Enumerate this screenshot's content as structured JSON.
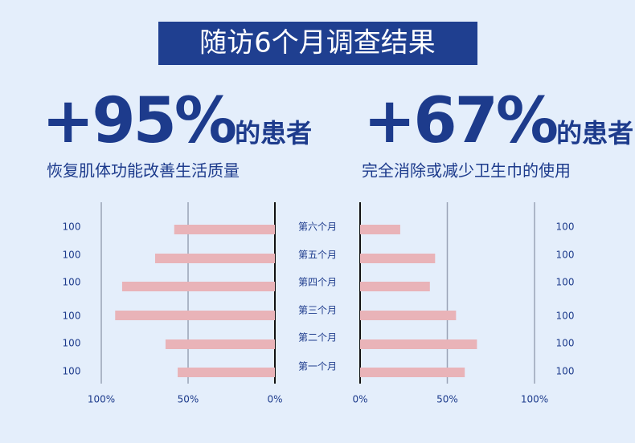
{
  "title": "随访6个月调查结果",
  "chart_data": [
    {
      "type": "bar",
      "orientation": "horizontal",
      "headline": "+95%",
      "headline_suffix": "的患者",
      "subtitle": "恢复肌体功能改善生活质量",
      "categories": [
        "第六个月",
        "第五个月",
        "第四个月",
        "第三个月",
        "第二个月",
        "第一个月"
      ],
      "values": [
        58,
        69,
        88,
        92,
        63,
        56
      ],
      "side_labels": [
        "100",
        "100",
        "100",
        "100",
        "100",
        "100"
      ],
      "color": "#e9b3b8",
      "xlim": [
        100,
        0
      ],
      "xticks": [
        {
          "value": 100,
          "label": "100%"
        },
        {
          "value": 50,
          "label": "50%"
        },
        {
          "value": 0,
          "label": "0%"
        }
      ],
      "grid": true
    },
    {
      "type": "bar",
      "orientation": "horizontal",
      "headline": "+67%",
      "headline_suffix": "的患者",
      "subtitle": "完全消除或减少卫生巾的使用",
      "values": [
        23,
        43,
        40,
        55,
        67,
        60
      ],
      "side_labels": [
        "100",
        "100",
        "100",
        "100",
        "100",
        "100"
      ],
      "color": "#e9b3b8",
      "xlim": [
        0,
        100
      ],
      "xticks": [
        {
          "value": 0,
          "label": "0%"
        },
        {
          "value": 50,
          "label": "50%"
        },
        {
          "value": 100,
          "label": "100%"
        }
      ],
      "grid": true
    }
  ]
}
